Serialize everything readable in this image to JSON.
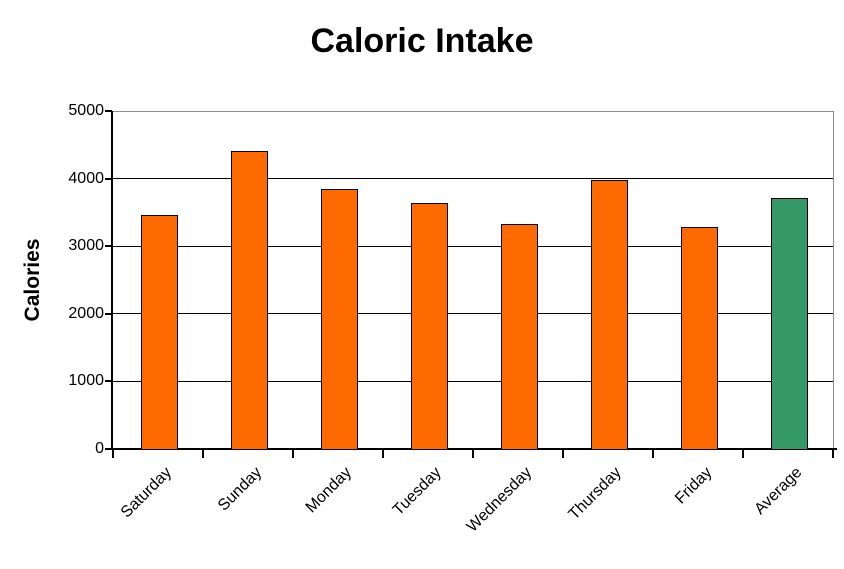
{
  "chart_data": {
    "type": "bar",
    "title": "Caloric Intake",
    "ylabel": "Calories",
    "xlabel": "",
    "categories": [
      "Saturday",
      "Sunday",
      "Monday",
      "Tuesday",
      "Wednesday",
      "Thursday",
      "Friday",
      "Average"
    ],
    "values": [
      3475,
      4425,
      3855,
      3650,
      3340,
      4000,
      3300,
      3721
    ],
    "ylim": [
      0,
      5000
    ],
    "yticks": [
      0,
      1000,
      2000,
      3000,
      4000,
      5000
    ],
    "grid": true,
    "legend": "none",
    "highlight_category": "Average",
    "colors": {
      "bar": "#ff6a00",
      "highlight_bar": "#349966",
      "bar_border": "#000000",
      "gridline": "#000000",
      "plot_border": "#8c8c8c",
      "axis": "#000000",
      "text": "#000000",
      "background": "#ffffff"
    }
  }
}
